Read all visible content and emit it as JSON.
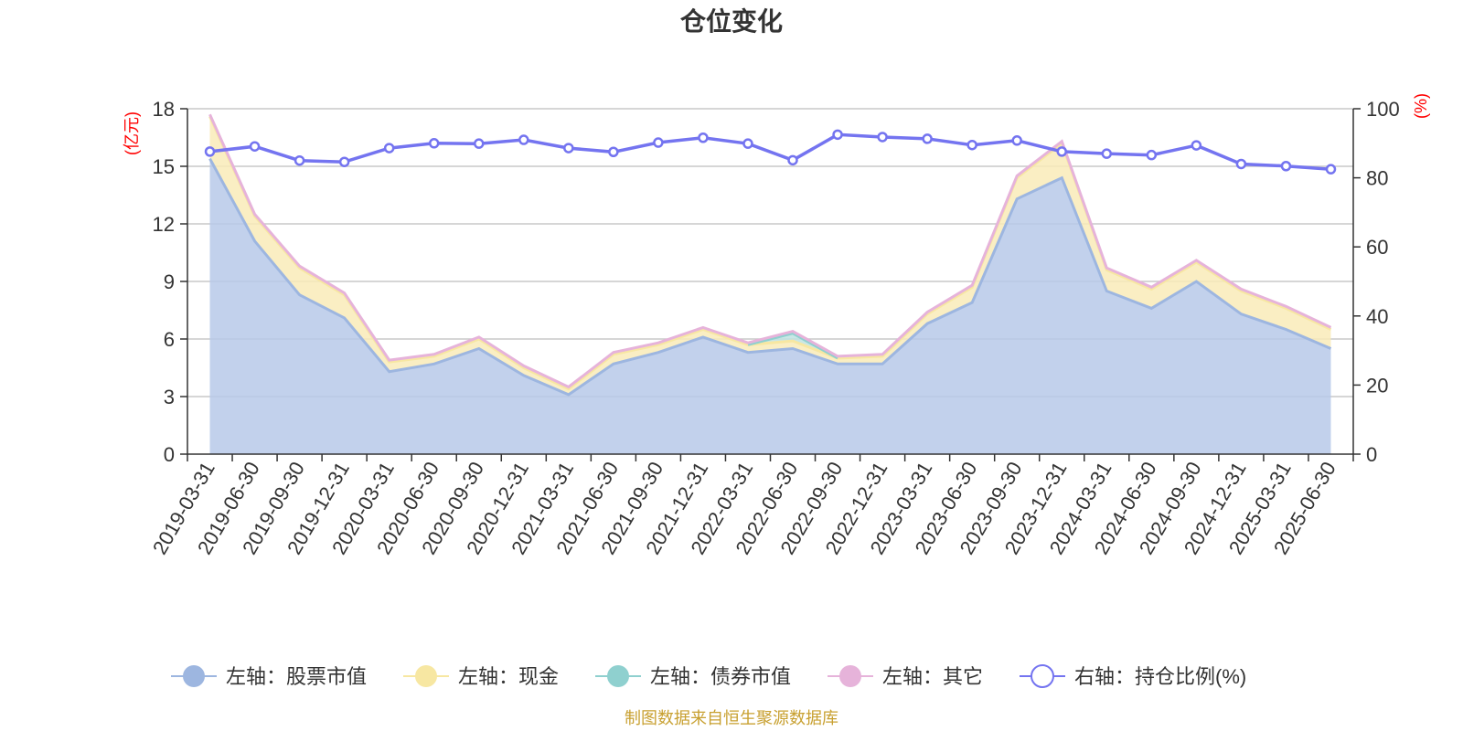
{
  "chart_data": {
    "type": "area",
    "title": "仓位变化",
    "left_axis": {
      "unit": "(亿元)",
      "ylim": [
        0,
        18
      ],
      "ticks": [
        0,
        3,
        6,
        9,
        12,
        15,
        18
      ]
    },
    "right_axis": {
      "unit": "(%)",
      "ylim": [
        0,
        100
      ],
      "ticks": [
        0,
        20,
        40,
        60,
        80,
        100
      ]
    },
    "categories": [
      "2019-03-31",
      "2019-06-30",
      "2019-09-30",
      "2019-12-31",
      "2020-03-31",
      "2020-06-30",
      "2020-09-30",
      "2020-12-31",
      "2021-03-31",
      "2021-06-30",
      "2021-09-30",
      "2021-12-31",
      "2022-03-31",
      "2022-06-30",
      "2022-09-30",
      "2022-12-31",
      "2023-03-31",
      "2023-06-30",
      "2023-09-30",
      "2023-12-31",
      "2024-03-31",
      "2024-06-30",
      "2024-09-30",
      "2024-12-31",
      "2025-03-31",
      "2025-06-30"
    ],
    "series": [
      {
        "name": "左轴：股票市值",
        "axis": "left",
        "color": "#9db6e0",
        "fill": "#b7c9e9",
        "values": [
          15.4,
          11.1,
          8.3,
          7.1,
          4.3,
          4.7,
          5.5,
          4.1,
          3.1,
          4.7,
          5.3,
          6.1,
          5.3,
          5.5,
          4.7,
          4.7,
          6.8,
          7.9,
          13.3,
          14.4,
          8.5,
          7.6,
          9.0,
          7.3,
          6.5,
          5.5
        ]
      },
      {
        "name": "左轴：现金",
        "axis": "left",
        "color": "#f7e7a2",
        "fill": "#f9ebb8",
        "values": [
          2.2,
          1.3,
          1.4,
          1.2,
          0.5,
          0.4,
          0.5,
          0.4,
          0.3,
          0.5,
          0.4,
          0.4,
          0.4,
          0.4,
          0.3,
          0.4,
          0.5,
          0.8,
          1.1,
          1.8,
          1.1,
          1.0,
          1.0,
          1.2,
          1.1,
          1.0
        ]
      },
      {
        "name": "左轴：债券市值",
        "axis": "left",
        "color": "#8fd0cf",
        "fill": "#bfe3e2",
        "values": [
          0,
          0,
          0,
          0,
          0,
          0,
          0,
          0,
          0,
          0,
          0,
          0,
          0,
          0.4,
          0,
          0,
          0,
          0,
          0,
          0,
          0,
          0,
          0,
          0,
          0,
          0
        ]
      },
      {
        "name": "左轴：其它",
        "axis": "left",
        "color": "#e6b3da",
        "fill": "#f2d8ee",
        "values": [
          0.1,
          0.1,
          0.1,
          0.1,
          0.1,
          0.1,
          0.1,
          0.1,
          0.1,
          0.1,
          0.1,
          0.1,
          0.1,
          0.1,
          0.1,
          0.1,
          0.1,
          0.1,
          0.1,
          0.1,
          0.1,
          0.1,
          0.1,
          0.1,
          0.1,
          0.1
        ]
      },
      {
        "name": "右轴：持仓比例(%)",
        "axis": "right",
        "color": "#7474f0",
        "values": [
          87.6,
          89.1,
          85.0,
          84.6,
          88.6,
          90.0,
          89.9,
          91.0,
          88.6,
          87.5,
          90.2,
          91.6,
          89.9,
          85.1,
          92.5,
          91.8,
          91.3,
          89.5,
          90.8,
          87.6,
          87.0,
          86.6,
          89.4,
          84.0,
          83.4,
          82.5
        ]
      }
    ]
  },
  "source": "制图数据来自恒生聚源数据库"
}
